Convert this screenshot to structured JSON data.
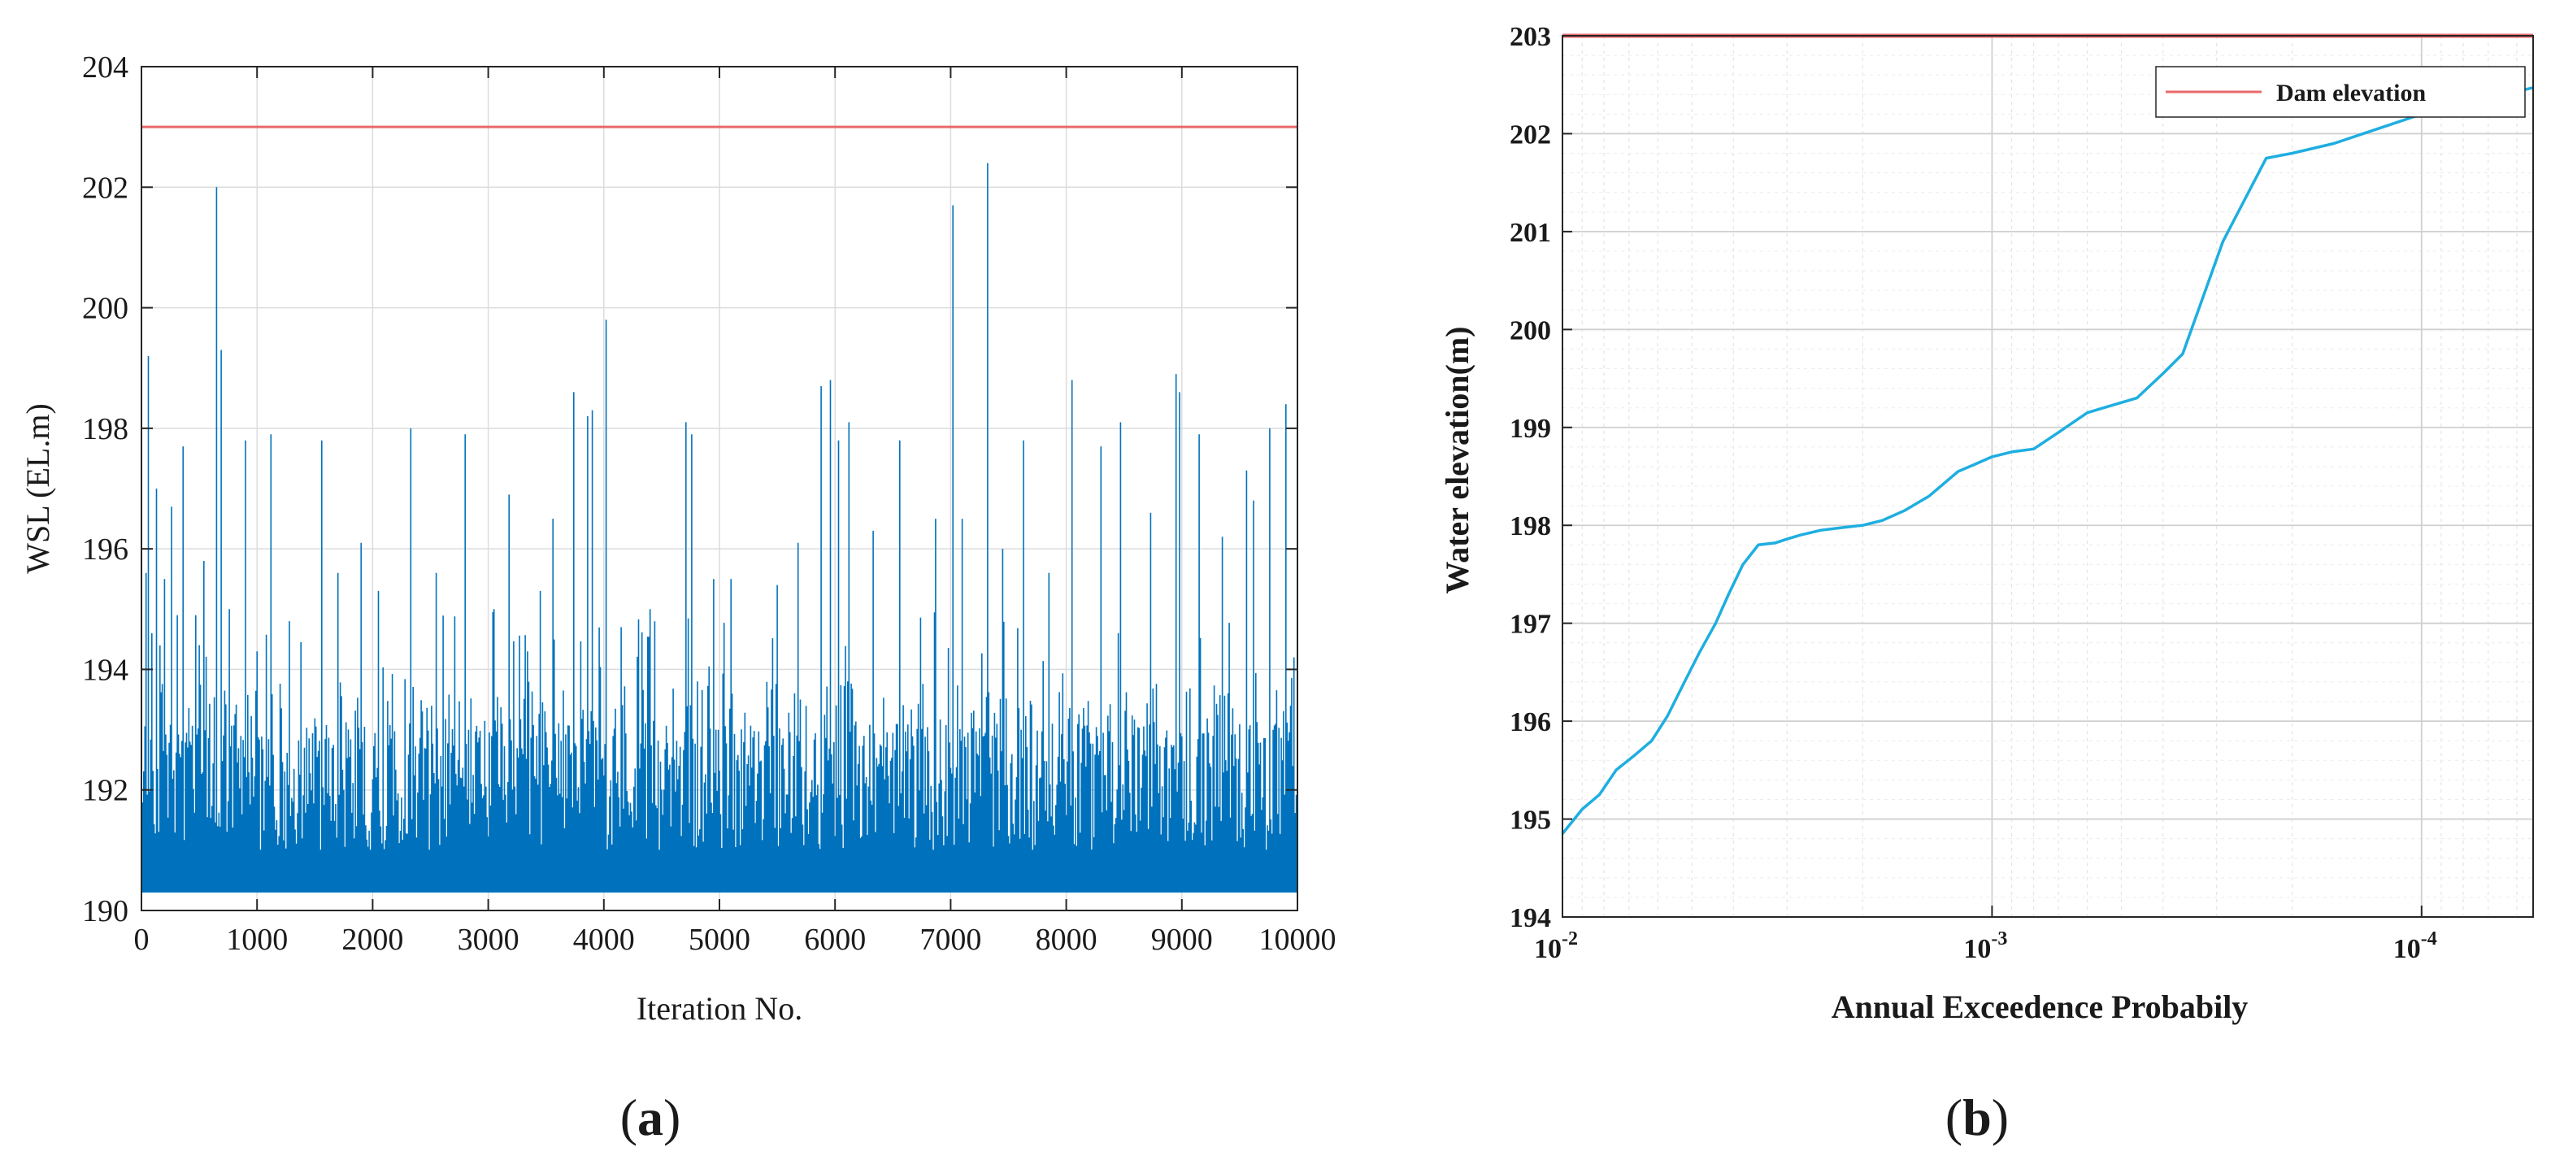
{
  "chart_data": [
    {
      "type": "line",
      "panel_label_open": "(",
      "panel_label_letter": "a",
      "panel_label_close": ")",
      "xlabel": "Iteration No.",
      "ylabel": "WSL (EL.m)",
      "xlim": [
        0,
        10000
      ],
      "ylim": [
        190,
        204
      ],
      "xticks": [
        0,
        1000,
        2000,
        3000,
        4000,
        5000,
        6000,
        7000,
        8000,
        9000,
        10000
      ],
      "yticks": [
        190,
        192,
        194,
        196,
        198,
        200,
        202,
        204
      ],
      "grid": true,
      "series": [
        {
          "color": "#0072bd",
          "baseline": 190.3,
          "typical_band": [
            191.0,
            193.8
          ],
          "peaks": [
            [
              40,
              195.6
            ],
            [
              60,
              199.2
            ],
            [
              90,
              194.6
            ],
            [
              130,
              197.0
            ],
            [
              200,
              195.5
            ],
            [
              260,
              196.7
            ],
            [
              310,
              194.9
            ],
            [
              360,
              197.7
            ],
            [
              470,
              194.9
            ],
            [
              540,
              195.8
            ],
            [
              650,
              202.0
            ],
            [
              690,
              199.3
            ],
            [
              760,
              195.0
            ],
            [
              900,
              197.8
            ],
            [
              1000,
              194.3
            ],
            [
              1120,
              197.9
            ],
            [
              1280,
              194.8
            ],
            [
              1560,
              197.8
            ],
            [
              1700,
              195.6
            ],
            [
              1900,
              196.1
            ],
            [
              2050,
              195.3
            ],
            [
              2330,
              198.0
            ],
            [
              2550,
              195.6
            ],
            [
              2800,
              197.9
            ],
            [
              3050,
              195.0
            ],
            [
              3180,
              196.9
            ],
            [
              3450,
              195.3
            ],
            [
              3560,
              196.5
            ],
            [
              3740,
              198.6
            ],
            [
              3860,
              198.2
            ],
            [
              3900,
              198.3
            ],
            [
              4020,
              199.8
            ],
            [
              4150,
              194.7
            ],
            [
              4400,
              195.0
            ],
            [
              4710,
              198.1
            ],
            [
              4760,
              197.9
            ],
            [
              4950,
              195.5
            ],
            [
              5100,
              195.5
            ],
            [
              5500,
              195.4
            ],
            [
              5680,
              196.1
            ],
            [
              5880,
              198.7
            ],
            [
              5960,
              198.8
            ],
            [
              6030,
              197.8
            ],
            [
              6120,
              198.1
            ],
            [
              6330,
              196.3
            ],
            [
              6560,
              197.8
            ],
            [
              6870,
              196.5
            ],
            [
              7020,
              201.7
            ],
            [
              7100,
              196.5
            ],
            [
              7320,
              202.4
            ],
            [
              7450,
              196.0
            ],
            [
              7630,
              197.8
            ],
            [
              7850,
              195.6
            ],
            [
              8050,
              198.8
            ],
            [
              8300,
              197.7
            ],
            [
              8470,
              198.1
            ],
            [
              8730,
              196.6
            ],
            [
              8950,
              198.9
            ],
            [
              8980,
              198.6
            ],
            [
              9150,
              197.9
            ],
            [
              9350,
              196.2
            ],
            [
              9560,
              197.3
            ],
            [
              9620,
              196.8
            ],
            [
              9760,
              198.0
            ],
            [
              9900,
              198.4
            ],
            [
              9970,
              194.2
            ]
          ]
        },
        {
          "color": "#e8696a",
          "x": [
            0,
            10000
          ],
          "y": [
            203,
            203
          ]
        }
      ]
    },
    {
      "type": "line",
      "panel_label_open": "(",
      "panel_label_letter": "b",
      "panel_label_close": ")",
      "xlabel": "Annual Exceedence Probabily",
      "ylabel": "Water elevation(m)",
      "xscale": "log",
      "x_direction": "reversed",
      "xlim": [
        0.01,
        5.5e-05
      ],
      "ylim": [
        194,
        203
      ],
      "xticks": [
        {
          "value": 0.01,
          "base": "10",
          "exp": "-2"
        },
        {
          "value": 0.001,
          "base": "10",
          "exp": "-3"
        },
        {
          "value": 0.0001,
          "base": "10",
          "exp": "-4"
        }
      ],
      "yticks": [
        194,
        195,
        196,
        197,
        198,
        199,
        200,
        201,
        202,
        203
      ],
      "grid": true,
      "legend": {
        "position": "top-right",
        "entries": [
          {
            "name": "Dam elevation",
            "color": "#e8696a"
          }
        ]
      },
      "series": [
        {
          "name": "Dam elevation",
          "color": "#e8696a",
          "x": [
            0.01,
            5.5e-05
          ],
          "y": [
            203,
            203
          ]
        },
        {
          "color": "#1eaee0",
          "x": [
            0.01,
            0.009,
            0.0082,
            0.0075,
            0.0068,
            0.0062,
            0.0057,
            0.0052,
            0.0048,
            0.0044,
            0.0041,
            0.0038,
            0.0035,
            0.0032,
            0.003,
            0.0028,
            0.0025,
            0.0022,
            0.002,
            0.0018,
            0.0016,
            0.0014,
            0.0012,
            0.0011,
            0.001,
            0.0009,
            0.0008,
            0.0007,
            0.0006,
            0.00055,
            0.00046,
            0.0004,
            0.00036,
            0.00029,
            0.00023,
            0.0002,
            0.00016,
            0.0001,
            5.5e-05
          ],
          "y": [
            194.85,
            195.1,
            195.25,
            195.5,
            195.65,
            195.8,
            196.05,
            196.4,
            196.7,
            197.0,
            197.3,
            197.6,
            197.8,
            197.82,
            197.86,
            197.9,
            197.95,
            197.98,
            198.0,
            198.05,
            198.15,
            198.3,
            198.55,
            198.62,
            198.7,
            198.75,
            198.78,
            198.95,
            199.15,
            199.2,
            199.3,
            199.55,
            199.75,
            200.9,
            201.75,
            201.8,
            201.9,
            202.2,
            202.47
          ]
        }
      ]
    }
  ]
}
